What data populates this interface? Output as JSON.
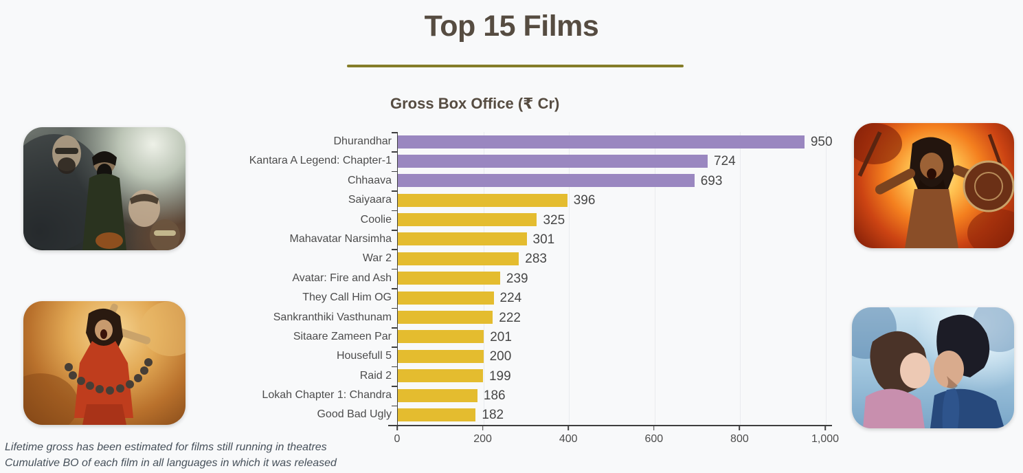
{
  "page": {
    "title": "Top 15 Films",
    "accent_color": "#857d28",
    "background_color": "#f8f9fa",
    "title_color": "#564c41"
  },
  "chart_data": {
    "type": "bar",
    "orientation": "horizontal",
    "title": "Gross Box Office (₹ Cr)",
    "xlabel": "",
    "ylabel": "",
    "xlim": [
      0,
      1000
    ],
    "grid": true,
    "value_labels": true,
    "categories": [
      "Dhurandhar",
      "Kantara A Legend: Chapter-1",
      "Chhaava",
      "Saiyaara",
      "Coolie",
      "Mahavatar Narsimha",
      "War 2",
      "Avatar: Fire and Ash",
      "They Call Him OG",
      "Sankranthiki Vasthunam",
      "Sitaare Zameen Par",
      "Housefull 5",
      "Raid 2",
      "Lokah Chapter 1: Chandra",
      "Good Bad Ugly"
    ],
    "values": [
      950,
      724,
      693,
      396,
      325,
      301,
      283,
      239,
      224,
      222,
      201,
      200,
      199,
      186,
      182
    ],
    "bar_colors": [
      "#9a87c0",
      "#9a87c0",
      "#9a87c0",
      "#e4bc2f",
      "#e4bc2f",
      "#e4bc2f",
      "#e4bc2f",
      "#e4bc2f",
      "#e4bc2f",
      "#e4bc2f",
      "#e4bc2f",
      "#e4bc2f",
      "#e4bc2f",
      "#e4bc2f",
      "#e4bc2f"
    ],
    "highlight_color": "#9a87c0",
    "default_color": "#e4bc2f",
    "x_ticks": [
      {
        "label": "0",
        "value": 0
      },
      {
        "label": "200",
        "value": 200
      },
      {
        "label": "400",
        "value": 400
      },
      {
        "label": "600",
        "value": 600
      },
      {
        "label": "800",
        "value": 800
      },
      {
        "label": "1,000",
        "value": 1000
      }
    ]
  },
  "footnotes": [
    "Lifetime gross has been estimated for films still running in theatres",
    "Cumulative BO of each film in all languages in which it was released"
  ],
  "posters": [
    {
      "film": "Dhurandhar",
      "position": "top-left"
    },
    {
      "film": "Kantara A Legend: Chapter-1",
      "position": "top-right"
    },
    {
      "film": "Chhaava",
      "position": "bottom-left"
    },
    {
      "film": "Saiyaara",
      "position": "bottom-right"
    }
  ]
}
